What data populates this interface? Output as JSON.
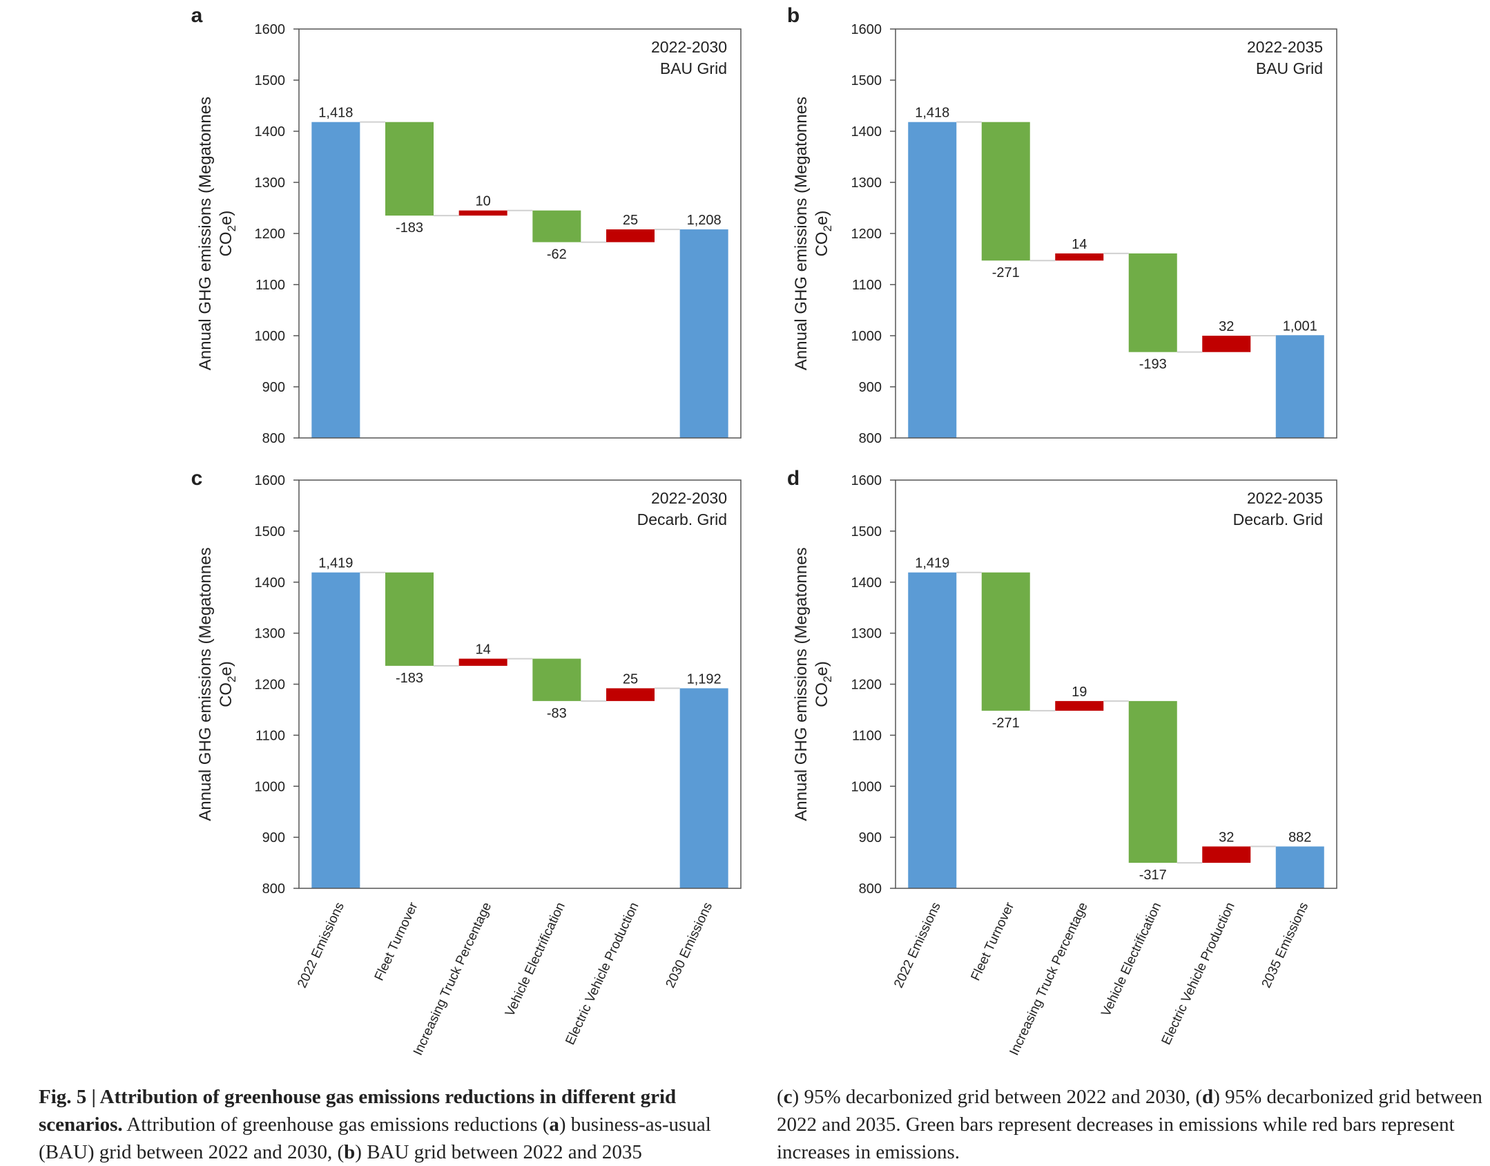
{
  "chart_data": [
    {
      "panel": "a",
      "type": "waterfall",
      "annotation": [
        "2022-2030",
        "BAU Grid"
      ],
      "ylabel": "Annual GHG emissions (Megatonnes CO2e)",
      "ylim": [
        800,
        1600
      ],
      "yticks": [
        800,
        900,
        1000,
        1100,
        1200,
        1300,
        1400,
        1500,
        1600
      ],
      "categories": [
        "2022 Emissions",
        "Fleet Turnover",
        "Increasing Truck Percentage",
        "Vehicle Electrification",
        "Electric Vehicle Production",
        "2030 Emissions"
      ],
      "values": [
        1418,
        -183,
        10,
        -62,
        25,
        1208
      ],
      "value_labels": [
        "1,418",
        "-183",
        "10",
        "-62",
        "25",
        "1,208"
      ],
      "kinds": [
        "total",
        "delta",
        "delta",
        "delta",
        "delta",
        "total"
      ]
    },
    {
      "panel": "b",
      "type": "waterfall",
      "annotation": [
        "2022-2035",
        "BAU Grid"
      ],
      "ylabel": "Annual GHG emissions (Megatonnes CO2e)",
      "ylim": [
        800,
        1600
      ],
      "yticks": [
        800,
        900,
        1000,
        1100,
        1200,
        1300,
        1400,
        1500,
        1600
      ],
      "categories": [
        "2022 Emissions",
        "Fleet Turnover",
        "Increasing Truck Percentage",
        "Vehicle Electrification",
        "Electric Vehicle Production",
        "2035 Emissions"
      ],
      "values": [
        1418,
        -271,
        14,
        -193,
        32,
        1001
      ],
      "value_labels": [
        "1,418",
        "-271",
        "14",
        "-193",
        "32",
        "1,001"
      ],
      "kinds": [
        "total",
        "delta",
        "delta",
        "delta",
        "delta",
        "total"
      ]
    },
    {
      "panel": "c",
      "type": "waterfall",
      "annotation": [
        "2022-2030",
        "Decarb. Grid"
      ],
      "ylabel": "Annual GHG emissions (Megatonnes CO2e)",
      "ylim": [
        800,
        1600
      ],
      "yticks": [
        800,
        900,
        1000,
        1100,
        1200,
        1300,
        1400,
        1500,
        1600
      ],
      "categories": [
        "2022 Emissions",
        "Fleet Turnover",
        "Increasing Truck Percentage",
        "Vehicle Electrification",
        "Electric Vehicle Production",
        "2030 Emissions"
      ],
      "values": [
        1419,
        -183,
        14,
        -83,
        25,
        1192
      ],
      "value_labels": [
        "1,419",
        "-183",
        "14",
        "-83",
        "25",
        "1,192"
      ],
      "kinds": [
        "total",
        "delta",
        "delta",
        "delta",
        "delta",
        "total"
      ]
    },
    {
      "panel": "d",
      "type": "waterfall",
      "annotation": [
        "2022-2035",
        "Decarb. Grid"
      ],
      "ylabel": "Annual GHG emissions (Megatonnes CO2e)",
      "ylim": [
        800,
        1600
      ],
      "yticks": [
        800,
        900,
        1000,
        1100,
        1200,
        1300,
        1400,
        1500,
        1600
      ],
      "categories": [
        "2022 Emissions",
        "Fleet Turnover",
        "Increasing Truck Percentage",
        "Vehicle Electrification",
        "Electric Vehicle Production",
        "2035 Emissions"
      ],
      "values": [
        1419,
        -271,
        19,
        -317,
        32,
        882
      ],
      "value_labels": [
        "1,419",
        "-271",
        "19",
        "-317",
        "32",
        "882"
      ],
      "kinds": [
        "total",
        "delta",
        "delta",
        "delta",
        "delta",
        "total"
      ]
    }
  ],
  "colors": {
    "total": "#5b9bd5",
    "decrease": "#70ad47",
    "increase": "#c00000",
    "axis": "#555555",
    "connector": "#d0d0d0"
  },
  "caption": {
    "fig_label": "Fig. 5 | Attribution of greenhouse gas emissions reductions in different grid scenarios.",
    "p1": " Attribution of greenhouse gas emissions reductions (",
    "a": "a",
    "p2": ") business-as-usual (BAU) grid between 2022 and 2030, (",
    "b": "b",
    "p3": ") BAU grid between 2022 and 2035 (",
    "c": "c",
    "p4": ") 95% decarbonized grid between 2022 and 2030, (",
    "d": "d",
    "p5": ") 95% decarbonized grid between 2022 and 2035. Green bars represent decreases in emissions while red bars represent increases in emissions."
  }
}
